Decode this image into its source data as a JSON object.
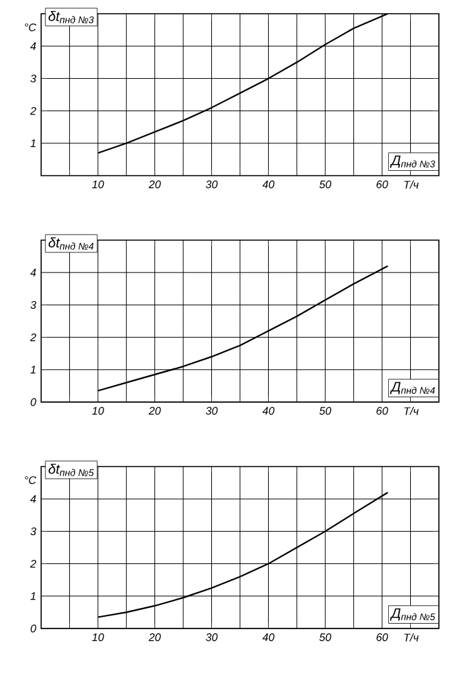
{
  "chart_data": [
    {
      "type": "line",
      "title": "δt$_{пнд №3}$",
      "xlabel": "T/ч",
      "ylabel": "°C",
      "annotations": [
        "Д$_{пнд №3}$"
      ],
      "x": [
        10,
        15,
        20,
        25,
        30,
        35,
        40,
        45,
        50,
        55,
        61
      ],
      "series": [
        {
          "color": "#000000",
          "values": [
            0.7,
            1.0,
            1.35,
            1.7,
            2.1,
            2.55,
            3.0,
            3.5,
            4.05,
            4.55,
            5.0
          ]
        }
      ],
      "xlim": [
        0,
        70
      ],
      "ylim": [
        0,
        5
      ],
      "xticks": [
        {
          "value": 5,
          "label": null
        },
        10,
        {
          "value": 15,
          "label": null
        },
        20,
        {
          "value": 25,
          "label": null
        },
        30,
        {
          "value": 35,
          "label": null
        },
        40,
        {
          "value": 45,
          "label": null
        },
        50,
        {
          "value": 55,
          "label": null
        },
        60,
        {
          "value": 65,
          "label": null
        }
      ],
      "yticks": [
        1,
        2,
        3,
        4
      ],
      "grid": true
    },
    {
      "type": "line",
      "title": "δt$_{пнд №4}$",
      "xlabel": "T/ч",
      "annotations": [
        "Д$_{пнд №4}$"
      ],
      "x": [
        10,
        15,
        20,
        25,
        30,
        35,
        40,
        45,
        50,
        55,
        61
      ],
      "series": [
        {
          "color": "#000000",
          "values": [
            0.35,
            0.6,
            0.85,
            1.1,
            1.4,
            1.75,
            2.2,
            2.65,
            3.15,
            3.65,
            4.2
          ]
        }
      ],
      "xlim": [
        0,
        70
      ],
      "ylim": [
        0,
        5
      ],
      "xticks": [
        {
          "value": 5,
          "label": null
        },
        10,
        {
          "value": 15,
          "label": null
        },
        20,
        {
          "value": 25,
          "label": null
        },
        30,
        {
          "value": 35,
          "label": null
        },
        40,
        {
          "value": 45,
          "label": null
        },
        50,
        {
          "value": 55,
          "label": null
        },
        60,
        {
          "value": 65,
          "label": null
        }
      ],
      "yticks": [
        0,
        1,
        2,
        3,
        4
      ],
      "grid": true
    },
    {
      "type": "line",
      "title": "δt$_{пнд №5}$",
      "xlabel": "T/ч",
      "ylabel": "°C",
      "annotations": [
        "Д$_{пнд №5}$"
      ],
      "x": [
        10,
        15,
        20,
        25,
        30,
        35,
        40,
        45,
        50,
        55,
        61
      ],
      "series": [
        {
          "color": "#000000",
          "values": [
            0.35,
            0.5,
            0.7,
            0.95,
            1.25,
            1.6,
            2.0,
            2.5,
            3.0,
            3.55,
            4.2
          ]
        }
      ],
      "xlim": [
        0,
        70
      ],
      "ylim": [
        0,
        5
      ],
      "xticks": [
        {
          "value": 5,
          "label": null
        },
        10,
        {
          "value": 15,
          "label": null
        },
        20,
        {
          "value": 25,
          "label": null
        },
        30,
        {
          "value": 35,
          "label": null
        },
        40,
        {
          "value": 45,
          "label": null
        },
        50,
        {
          "value": 55,
          "label": null
        },
        60,
        {
          "value": 65,
          "label": null
        }
      ],
      "yticks": [
        0,
        1,
        2,
        3,
        4
      ],
      "grid": true
    }
  ]
}
